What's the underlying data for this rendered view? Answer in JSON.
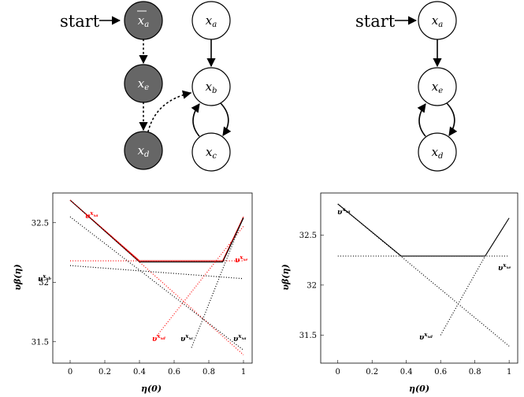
{
  "colors": {
    "black": "#000000",
    "red": "#ff0000",
    "filled_node": "#666666",
    "node_text_light": "#ffffff"
  },
  "diagram_left": {
    "start_label": "start",
    "nodes": {
      "xa_bar": {
        "base": "x",
        "sub": "a",
        "bar": true
      },
      "xe": {
        "base": "x",
        "sub": "e"
      },
      "xd": {
        "base": "x",
        "sub": "d"
      },
      "xa": {
        "base": "x",
        "sub": "a"
      },
      "xb": {
        "base": "x",
        "sub": "b"
      },
      "xc": {
        "base": "x",
        "sub": "c"
      }
    }
  },
  "diagram_right": {
    "start_label": "start",
    "nodes": {
      "xa": {
        "base": "x",
        "sub": "a"
      },
      "xe": {
        "base": "x",
        "sub": "e"
      },
      "xd": {
        "base": "x",
        "sub": "d"
      }
    }
  },
  "plot_left": {
    "xlabel": "η(0)",
    "ylabel": "υβ(η)",
    "xticks": [
      "0",
      "0.2",
      "0.4",
      "0.6",
      "0.8",
      "1"
    ],
    "yticks": [
      "31.5",
      "32",
      "32.5"
    ],
    "xlim": [
      -0.1,
      1.05
    ],
    "ylim": [
      31.32,
      32.75
    ],
    "series": [
      {
        "label": "xa",
        "color": "red",
        "style": "solid",
        "points": [
          [
            0,
            32.69
          ],
          [
            0.4,
            32.18
          ],
          [
            0.88,
            32.18
          ],
          [
            1,
            32.55
          ]
        ]
      },
      {
        "label": "xa",
        "color": "black",
        "style": "solid",
        "points": [
          [
            0,
            32.69
          ],
          [
            0.4,
            32.17
          ],
          [
            0.88,
            32.17
          ],
          [
            1,
            32.54
          ]
        ]
      },
      {
        "label": "xa",
        "color": "red",
        "style": "dotted",
        "points": [
          [
            0,
            32.69
          ],
          [
            1,
            31.39
          ]
        ]
      },
      {
        "label": "xb",
        "color": "black",
        "style": "dotted",
        "points": [
          [
            0,
            32.14
          ],
          [
            1,
            32.03
          ]
        ]
      },
      {
        "label": "xe",
        "color": "red",
        "style": "dotted",
        "points": [
          [
            0,
            32.18
          ],
          [
            1,
            32.18
          ]
        ]
      },
      {
        "label": "xd",
        "color": "red",
        "style": "dotted",
        "points": [
          [
            0.5,
            31.55
          ],
          [
            1,
            32.47
          ]
        ]
      },
      {
        "label": "xc",
        "color": "black",
        "style": "dotted",
        "points": [
          [
            0.7,
            31.45
          ],
          [
            1,
            32.55
          ]
        ]
      },
      {
        "label": "xa",
        "color": "black",
        "style": "dotted",
        "points": [
          [
            0,
            32.55
          ],
          [
            1,
            31.43
          ]
        ]
      }
    ],
    "labels": [
      {
        "text": "xa",
        "color": "red"
      },
      {
        "text": "xe",
        "color": "red"
      },
      {
        "text": "xb",
        "color": "black"
      },
      {
        "text": "xd",
        "color": "red"
      },
      {
        "text": "xc",
        "color": "black"
      },
      {
        "text": "xa",
        "color": "black"
      }
    ]
  },
  "plot_right": {
    "xlabel": "η(0)",
    "ylabel": "υβ(η)",
    "xticks": [
      "0",
      "0.2",
      "0.4",
      "0.6",
      "0.8",
      "1"
    ],
    "yticks": [
      "31.5",
      "32",
      "32.5"
    ],
    "xlim": [
      -0.1,
      1.05
    ],
    "ylim": [
      31.22,
      32.92
    ],
    "series": [
      {
        "label": "xa",
        "color": "black",
        "style": "solid",
        "points": [
          [
            0,
            32.81
          ],
          [
            0.37,
            32.29
          ],
          [
            0.86,
            32.29
          ],
          [
            1,
            32.67
          ]
        ]
      },
      {
        "label": "xe",
        "color": "black",
        "style": "dotted",
        "points": [
          [
            0,
            32.29
          ],
          [
            1,
            32.29
          ]
        ]
      },
      {
        "label": "xa",
        "color": "black",
        "style": "dotted",
        "points": [
          [
            0,
            32.81
          ],
          [
            1,
            31.39
          ]
        ]
      },
      {
        "label": "xd",
        "color": "black",
        "style": "dotted",
        "points": [
          [
            0.6,
            31.5
          ],
          [
            0.86,
            32.29
          ]
        ]
      }
    ],
    "labels": [
      {
        "text": "xa",
        "color": "black"
      },
      {
        "text": "xe",
        "color": "black"
      },
      {
        "text": "xd",
        "color": "black"
      }
    ]
  }
}
